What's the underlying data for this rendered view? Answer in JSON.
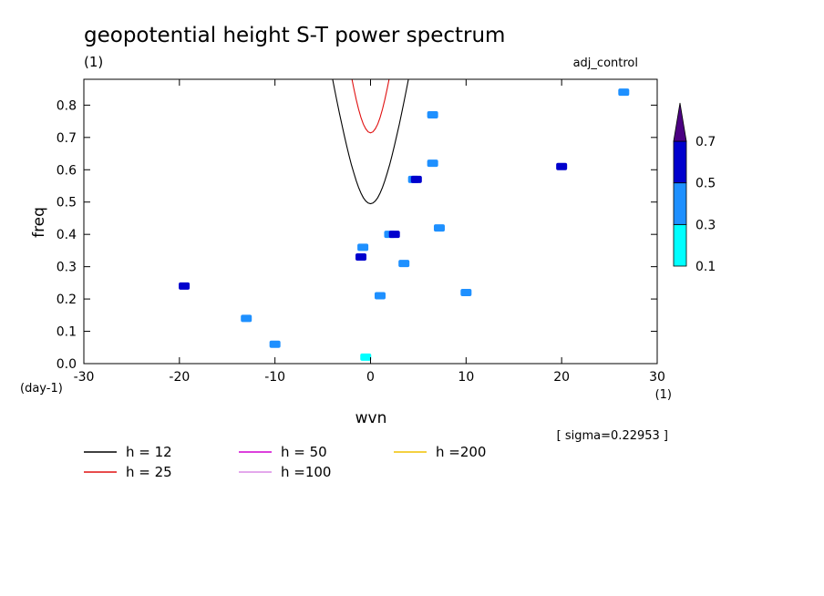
{
  "chart_data": {
    "type": "heatmap",
    "title": "geopotential height S-T power spectrum",
    "subtitle_left": "(1)",
    "subtitle_right": "adj_control",
    "xlabel": "wvn",
    "ylabel": "freq",
    "x_unit_label": "(1)",
    "y_unit_label": "(day-1)",
    "xlim": [
      -30,
      30
    ],
    "ylim": [
      0.0,
      0.88
    ],
    "x_ticks": [
      -30,
      -20,
      -10,
      0,
      10,
      20,
      30
    ],
    "x_tick_labels": [
      "-30",
      "-20",
      "-10",
      "0",
      "10",
      "20",
      "30"
    ],
    "y_ticks": [
      0.0,
      0.1,
      0.2,
      0.3,
      0.4,
      0.5,
      0.6,
      0.7,
      0.8
    ],
    "y_tick_labels": [
      "0.0",
      "0.1",
      "0.2",
      "0.3",
      "0.4",
      "0.5",
      "0.6",
      "0.7",
      "0.8"
    ],
    "sigma_text": "[ sigma=0.22953 ]",
    "colorbar": {
      "levels": [
        "0.1",
        "0.3",
        "0.5",
        "0.7"
      ],
      "colors": [
        "#00ffff",
        "#1e90ff",
        "#0000cd",
        "#4b0082"
      ]
    },
    "dispersion_curves": [
      {
        "h": 12,
        "label": "h = 12",
        "color": "#000000"
      },
      {
        "h": 25,
        "label": "h = 25",
        "color": "#e01010"
      },
      {
        "h": 50,
        "label": "h = 50",
        "color": "#d000d0"
      },
      {
        "h": 100,
        "label": "h =100",
        "color": "#dc8ce6"
      },
      {
        "h": 200,
        "label": "h =200",
        "color": "#f0c000"
      }
    ],
    "dispersion_constants": {
      "scale": 2.7,
      "offset": 3.5
    },
    "contours": [
      {
        "x": -19.5,
        "y": 0.24,
        "level": 0.5
      },
      {
        "x": -13.0,
        "y": 0.14,
        "level": 0.3
      },
      {
        "x": -1.0,
        "y": 0.33,
        "level": 0.5
      },
      {
        "x": -0.8,
        "y": 0.36,
        "level": 0.3
      },
      {
        "x": 2.0,
        "y": 0.4,
        "level": 0.3
      },
      {
        "x": 2.5,
        "y": 0.4,
        "level": 0.5
      },
      {
        "x": 4.5,
        "y": 0.57,
        "level": 0.3
      },
      {
        "x": 4.8,
        "y": 0.57,
        "level": 0.5
      },
      {
        "x": 3.5,
        "y": 0.31,
        "level": 0.3
      },
      {
        "x": 6.5,
        "y": 0.62,
        "level": 0.3
      },
      {
        "x": 6.5,
        "y": 0.77,
        "level": 0.3
      },
      {
        "x": 7.2,
        "y": 0.42,
        "level": 0.3
      },
      {
        "x": 20.0,
        "y": 0.61,
        "level": 0.5
      },
      {
        "x": 26.5,
        "y": 0.84,
        "level": 0.3
      },
      {
        "x": -0.5,
        "y": 0.02,
        "level": 0.1
      },
      {
        "x": 1.0,
        "y": 0.21,
        "level": 0.3
      },
      {
        "x": 10.0,
        "y": 0.22,
        "level": 0.3
      },
      {
        "x": -10.0,
        "y": 0.06,
        "level": 0.3
      }
    ]
  }
}
